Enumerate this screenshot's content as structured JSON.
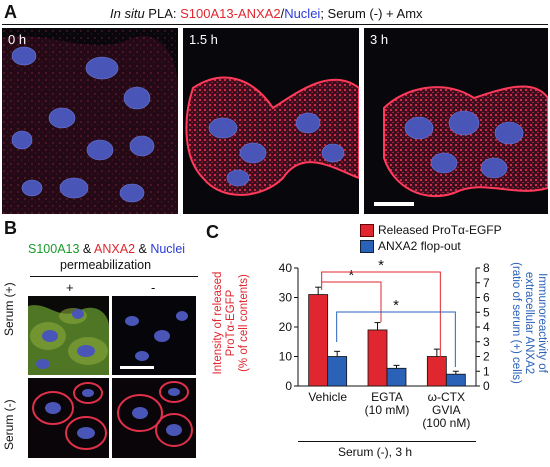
{
  "panel_a": {
    "letter": "A",
    "header_italic": "In situ",
    "header_plain1": " PLA: ",
    "header_red": "S100A13-ANXA2",
    "header_slash": "/",
    "header_blue": "Nuclei",
    "header_tail": "; Serum (-) + Amx",
    "timepoints": [
      "0 h",
      "1.5 h",
      "3 h"
    ]
  },
  "panel_b": {
    "letter": "B",
    "header_green": "S100A13",
    "amp1": " & ",
    "header_red": "ANXA2",
    "amp2": " & ",
    "header_blue": "Nuclei",
    "sub": "permeabilization",
    "col_plus": "+",
    "col_minus": "-",
    "row_top": "Serum (+)",
    "row_bottom": "Serum (-)"
  },
  "panel_c": {
    "letter": "C",
    "bottom_label": "Serum (-), 3 h"
  },
  "chart_data": {
    "type": "bar",
    "categories": [
      "Vehicle",
      "EGTA\n(10 mM)",
      "ω-CTX\nGVIA\n(100 nM)"
    ],
    "category_lines": [
      [
        "Vehicle"
      ],
      [
        "EGTA",
        "(10 mM)"
      ],
      [
        "ω-CTX",
        "GVIA",
        "(100 nM)"
      ]
    ],
    "series": [
      {
        "name": "Released ProTα-EGFP",
        "axis": "left",
        "color": "#e0262e",
        "values": [
          31,
          19,
          10
        ],
        "errors": [
          2.5,
          2.5,
          2.5
        ]
      },
      {
        "name": "ANXA2 flop-out",
        "axis": "right",
        "color": "#2a62b8",
        "values": [
          2,
          1.2,
          0.8
        ],
        "errors": [
          0.35,
          0.2,
          0.2
        ]
      }
    ],
    "ylabel_left": [
      "Intensity of released",
      "ProTα-EGFP",
      "(% of cell contents)"
    ],
    "ylabel_right": [
      "Immunoreactivity of",
      "extracellular ANXA2",
      "(ratio of serum (+) cells)"
    ],
    "ylim_left": [
      0,
      40
    ],
    "yticks_left": [
      0,
      10,
      20,
      30,
      40
    ],
    "ylim_right": [
      0,
      8
    ],
    "yticks_right": [
      0,
      1,
      2,
      3,
      4,
      5,
      6,
      7,
      8
    ],
    "significance": [
      {
        "from": "Vehicle",
        "to": "EGTA\n(10 mM)",
        "series": "Released ProTα-EGFP",
        "label": "*"
      },
      {
        "from": "Vehicle",
        "to": "ω-CTX\nGVIA\n(100 nM)",
        "series": "Released ProTα-EGFP",
        "label": "*"
      },
      {
        "from": "Vehicle",
        "to": "ω-CTX\nGVIA\n(100 nM)",
        "series": "ANXA2 flop-out",
        "label": "*"
      }
    ],
    "legend_position": "top-right",
    "grid": false
  }
}
